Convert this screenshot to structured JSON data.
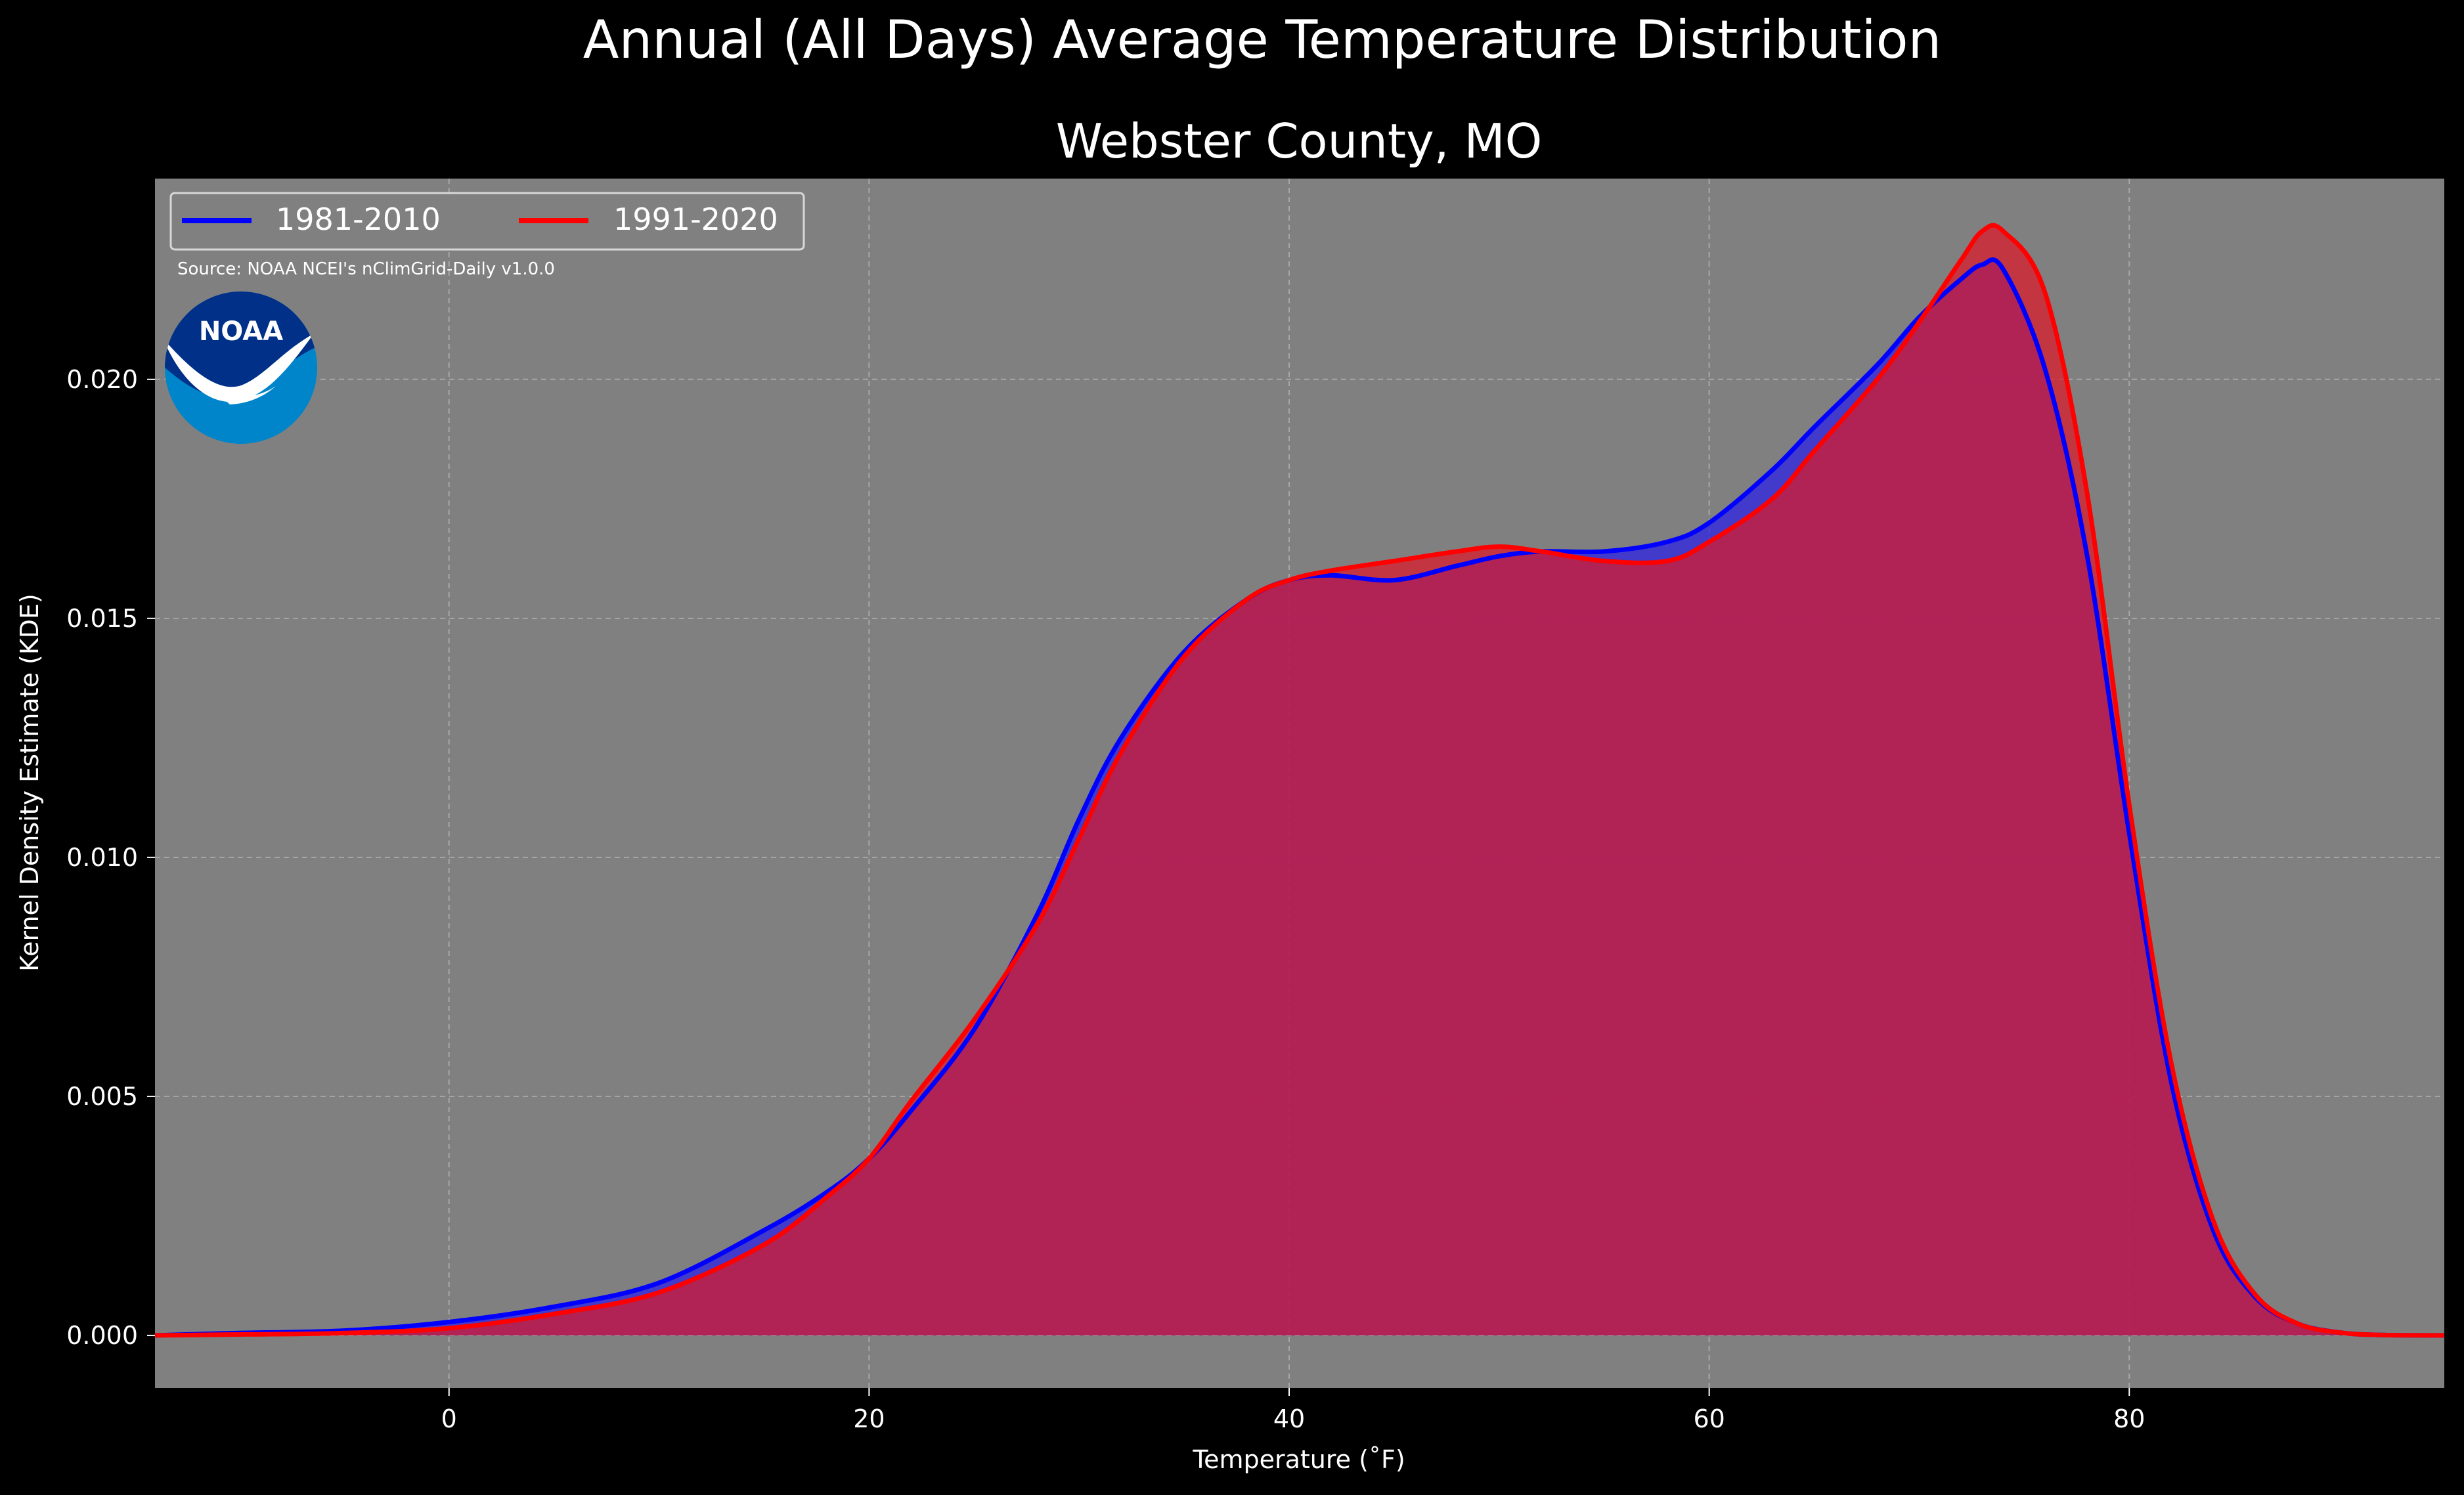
{
  "chart_data": {
    "type": "area",
    "suptitle": "Annual (All Days) Average Temperature Distribution",
    "title": "Webster County, MO",
    "xlabel": "Temperature ($^\\circ$F)",
    "xlabel_display": "Temperature (˚F)",
    "ylabel": "Kernel Density Estimate (KDE)",
    "xlim": [
      -14,
      95
    ],
    "ylim": [
      -0.0011,
      0.0242
    ],
    "xticks": [
      0,
      20,
      40,
      60,
      80
    ],
    "yticks": [
      0.0,
      0.005,
      0.01,
      0.015,
      0.02
    ],
    "ytick_labels": [
      "0.000",
      "0.005",
      "0.010",
      "0.015",
      "0.020"
    ],
    "grid": true,
    "legend_position": "upper-left",
    "source_note": "Source: NOAA NCEI's nClimGrid-Daily v1.0.0",
    "logo": "noaa-logo",
    "colors": {
      "background": "#000000",
      "plot_background": "#808080",
      "text": "#ffffff",
      "grid": "#b8b8b8"
    },
    "x": [
      -14,
      -10,
      -5,
      0,
      5,
      10,
      15,
      18,
      20,
      22,
      25,
      28,
      30,
      32,
      35,
      38,
      40,
      42,
      45,
      48,
      50,
      52,
      55,
      58,
      60,
      63,
      65,
      68,
      70,
      72,
      73,
      74,
      76,
      78,
      80,
      82,
      84,
      86,
      88,
      90,
      92,
      95
    ],
    "series": [
      {
        "name": "1981-2010",
        "color": "#0000ff",
        "fill": "rgba(40,30,230,0.72)",
        "values": [
          0.0,
          5e-05,
          0.0001,
          0.00028,
          0.0006,
          0.0011,
          0.0022,
          0.003,
          0.0037,
          0.0047,
          0.0064,
          0.0088,
          0.0108,
          0.0125,
          0.0143,
          0.0154,
          0.0158,
          0.0159,
          0.0158,
          0.0161,
          0.0163,
          0.0164,
          0.0164,
          0.0166,
          0.017,
          0.0181,
          0.019,
          0.0203,
          0.0213,
          0.0221,
          0.0224,
          0.0223,
          0.0202,
          0.0163,
          0.0105,
          0.0053,
          0.0022,
          0.0008,
          0.00025,
          6e-05,
          1e-05,
          0.0
        ]
      },
      {
        "name": "1991-2020",
        "color": "#ff0000",
        "fill": "rgba(220,25,40,0.72)",
        "values": [
          0.0,
          2e-05,
          5e-05,
          0.00015,
          0.00045,
          0.0009,
          0.0019,
          0.0029,
          0.0037,
          0.0049,
          0.0066,
          0.0086,
          0.0104,
          0.0122,
          0.0142,
          0.0154,
          0.0158,
          0.016,
          0.0162,
          0.0164,
          0.0165,
          0.0164,
          0.0162,
          0.0162,
          0.0166,
          0.0175,
          0.0185,
          0.02,
          0.0212,
          0.0225,
          0.0231,
          0.0231,
          0.0218,
          0.0176,
          0.0111,
          0.0057,
          0.0024,
          0.00085,
          0.00025,
          6e-05,
          1e-05,
          0.0
        ]
      }
    ]
  }
}
